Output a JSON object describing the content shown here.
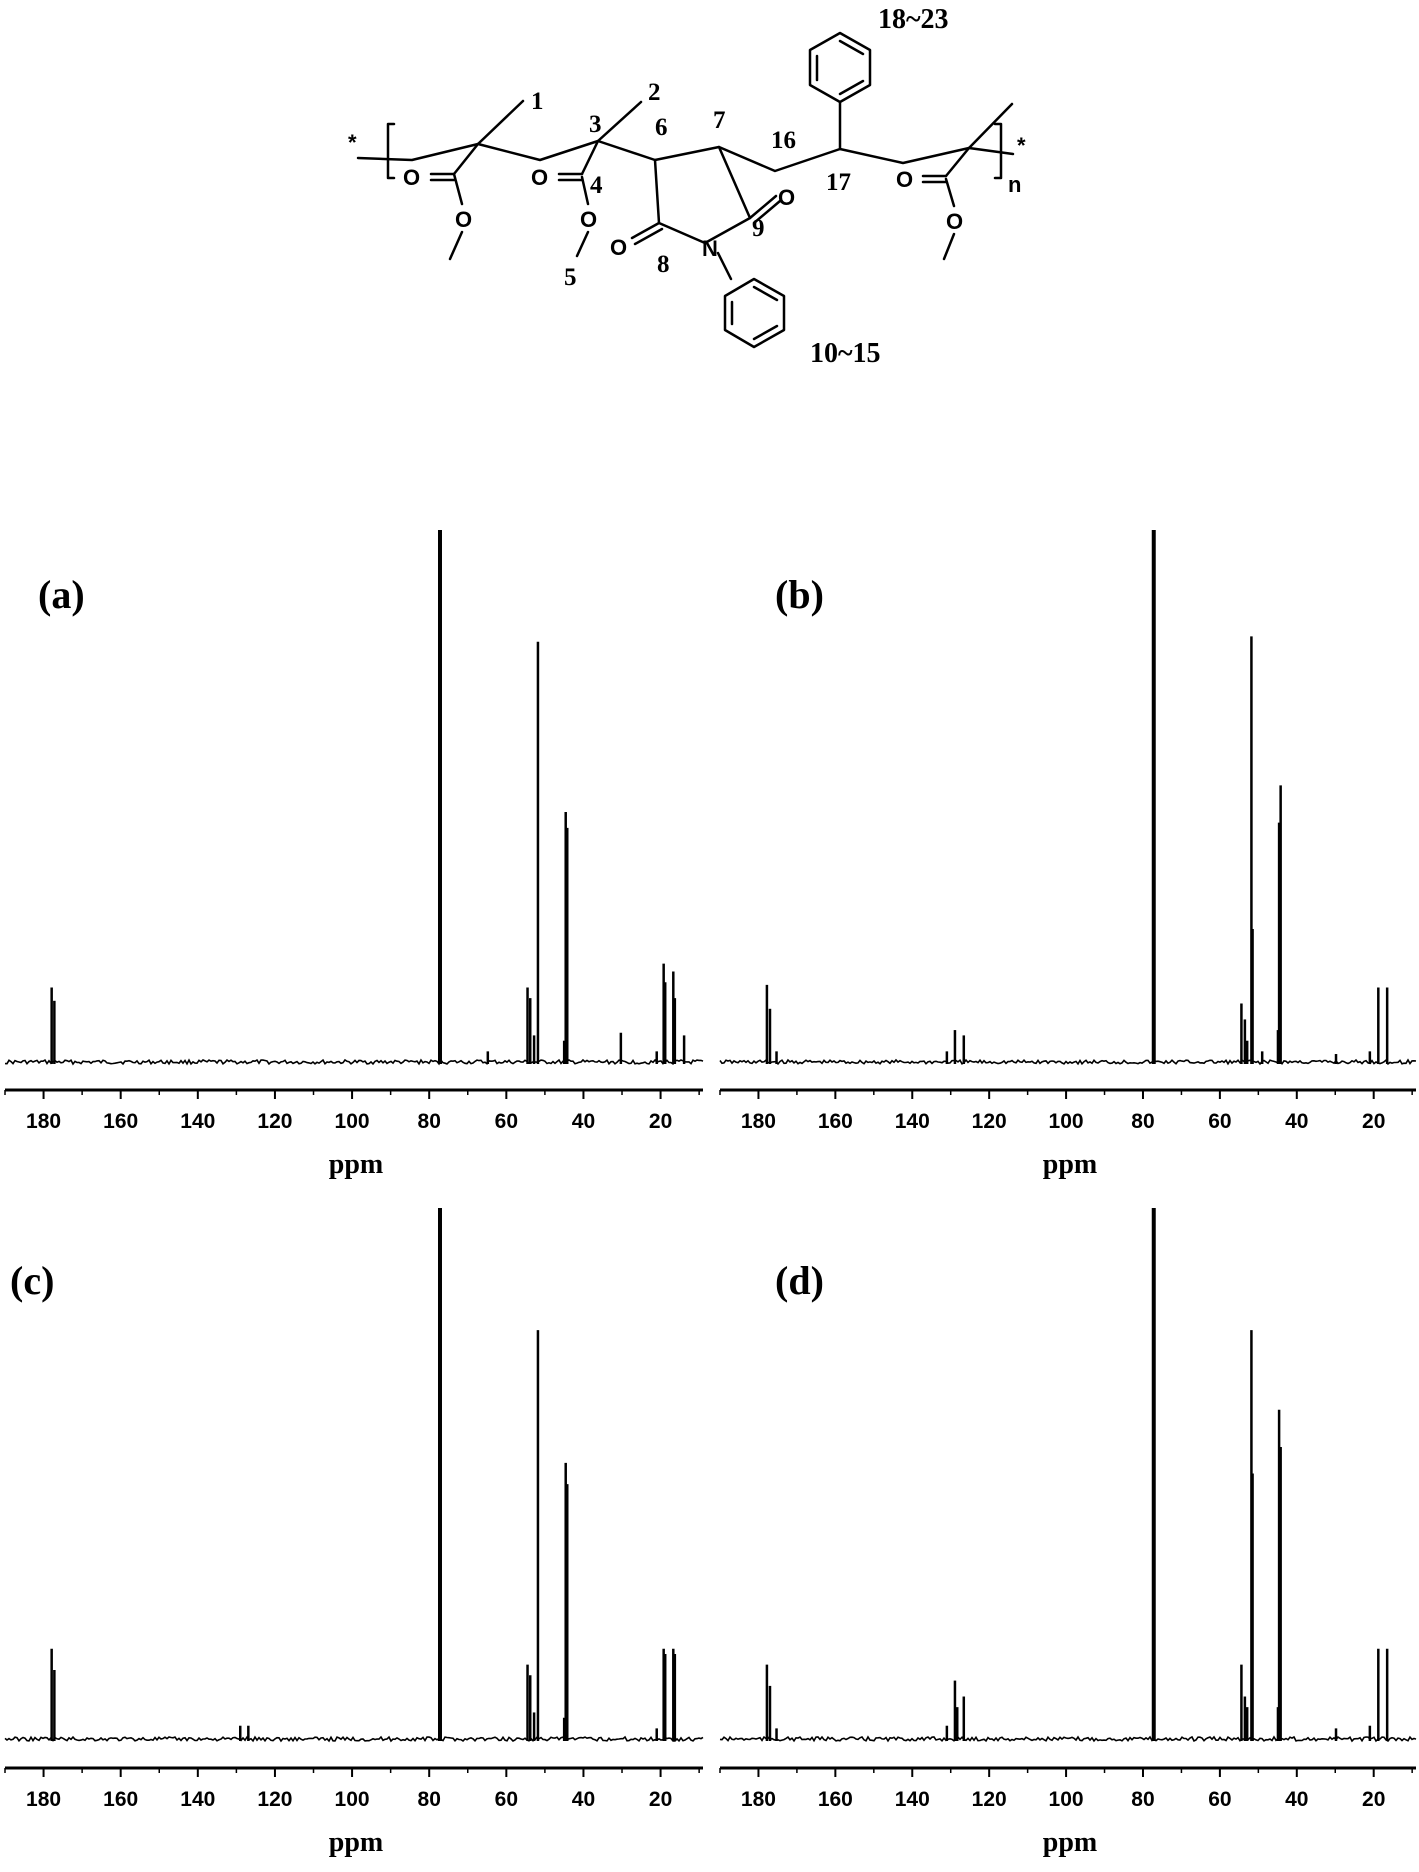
{
  "structure": {
    "atom_O": "O",
    "atom_N": "N",
    "repeat_n": "n",
    "end_star": "*",
    "labels": {
      "c1": "1",
      "c2": "2",
      "c3": "3",
      "c4": "4",
      "c5": "5",
      "c6": "6",
      "c7": "7",
      "c8": "8",
      "c9": "9",
      "c16": "16",
      "c17": "17",
      "r1015": "10~15",
      "r1823": "18~23"
    }
  },
  "chart_data": [
    {
      "type": "line",
      "panel_label": "(a)",
      "xlabel": "ppm",
      "x_reversed": true,
      "xlim": [
        190,
        9
      ],
      "ylim": [
        0,
        1
      ],
      "grid": false,
      "xticks": [
        180,
        160,
        140,
        120,
        100,
        80,
        60,
        40,
        20
      ],
      "peaks": [
        {
          "ppm": 177.9,
          "h": 0.14
        },
        {
          "ppm": 177.2,
          "h": 0.115
        },
        {
          "ppm": 77.2,
          "h": 1.0
        },
        {
          "ppm": 64.8,
          "h": 0.02
        },
        {
          "ppm": 54.5,
          "h": 0.14
        },
        {
          "ppm": 53.8,
          "h": 0.12
        },
        {
          "ppm": 52.8,
          "h": 0.05
        },
        {
          "ppm": 51.8,
          "h": 0.79
        },
        {
          "ppm": 45.0,
          "h": 0.04
        },
        {
          "ppm": 44.6,
          "h": 0.47
        },
        {
          "ppm": 44.2,
          "h": 0.44
        },
        {
          "ppm": 30.3,
          "h": 0.055
        },
        {
          "ppm": 21.0,
          "h": 0.02
        },
        {
          "ppm": 19.2,
          "h": 0.185
        },
        {
          "ppm": 18.8,
          "h": 0.15
        },
        {
          "ppm": 16.7,
          "h": 0.17
        },
        {
          "ppm": 16.3,
          "h": 0.12
        },
        {
          "ppm": 13.9,
          "h": 0.05
        }
      ]
    },
    {
      "type": "line",
      "panel_label": "(b)",
      "xlabel": "ppm",
      "x_reversed": true,
      "xlim": [
        190,
        9
      ],
      "ylim": [
        0,
        1
      ],
      "grid": false,
      "xticks": [
        180,
        160,
        140,
        120,
        100,
        80,
        60,
        40,
        20
      ],
      "peaks": [
        {
          "ppm": 177.8,
          "h": 0.145
        },
        {
          "ppm": 177.0,
          "h": 0.1
        },
        {
          "ppm": 175.3,
          "h": 0.02
        },
        {
          "ppm": 131.0,
          "h": 0.02
        },
        {
          "ppm": 128.9,
          "h": 0.06
        },
        {
          "ppm": 126.6,
          "h": 0.05
        },
        {
          "ppm": 77.2,
          "h": 1.0
        },
        {
          "ppm": 54.4,
          "h": 0.11
        },
        {
          "ppm": 53.5,
          "h": 0.08
        },
        {
          "ppm": 52.9,
          "h": 0.04
        },
        {
          "ppm": 51.8,
          "h": 0.8
        },
        {
          "ppm": 51.5,
          "h": 0.25
        },
        {
          "ppm": 49.0,
          "h": 0.02
        },
        {
          "ppm": 44.9,
          "h": 0.06
        },
        {
          "ppm": 44.6,
          "h": 0.45
        },
        {
          "ppm": 44.2,
          "h": 0.52
        },
        {
          "ppm": 29.8,
          "h": 0.015
        },
        {
          "ppm": 21.0,
          "h": 0.02
        },
        {
          "ppm": 18.8,
          "h": 0.14
        },
        {
          "ppm": 16.5,
          "h": 0.14
        }
      ]
    },
    {
      "type": "line",
      "panel_label": "(c)",
      "xlabel": "ppm",
      "x_reversed": true,
      "xlim": [
        190,
        9
      ],
      "ylim": [
        0,
        1
      ],
      "grid": false,
      "xticks": [
        180,
        160,
        140,
        120,
        100,
        80,
        60,
        40,
        20
      ],
      "peaks": [
        {
          "ppm": 177.9,
          "h": 0.17
        },
        {
          "ppm": 177.2,
          "h": 0.13
        },
        {
          "ppm": 129.0,
          "h": 0.025
        },
        {
          "ppm": 126.9,
          "h": 0.025
        },
        {
          "ppm": 77.2,
          "h": 1.0
        },
        {
          "ppm": 54.5,
          "h": 0.14
        },
        {
          "ppm": 53.8,
          "h": 0.12
        },
        {
          "ppm": 52.8,
          "h": 0.05
        },
        {
          "ppm": 51.8,
          "h": 0.77
        },
        {
          "ppm": 45.0,
          "h": 0.04
        },
        {
          "ppm": 44.6,
          "h": 0.52
        },
        {
          "ppm": 44.2,
          "h": 0.48
        },
        {
          "ppm": 21.0,
          "h": 0.02
        },
        {
          "ppm": 19.2,
          "h": 0.17
        },
        {
          "ppm": 18.8,
          "h": 0.16
        },
        {
          "ppm": 16.7,
          "h": 0.17
        },
        {
          "ppm": 16.3,
          "h": 0.16
        }
      ]
    },
    {
      "type": "line",
      "panel_label": "(d)",
      "xlabel": "ppm",
      "x_reversed": true,
      "xlim": [
        190,
        9
      ],
      "ylim": [
        0,
        1
      ],
      "grid": false,
      "xticks": [
        180,
        160,
        140,
        120,
        100,
        80,
        60,
        40,
        20
      ],
      "peaks": [
        {
          "ppm": 177.8,
          "h": 0.14
        },
        {
          "ppm": 177.0,
          "h": 0.1
        },
        {
          "ppm": 175.3,
          "h": 0.02
        },
        {
          "ppm": 131.0,
          "h": 0.025
        },
        {
          "ppm": 128.9,
          "h": 0.11
        },
        {
          "ppm": 128.3,
          "h": 0.06
        },
        {
          "ppm": 126.6,
          "h": 0.08
        },
        {
          "ppm": 77.2,
          "h": 1.0
        },
        {
          "ppm": 54.4,
          "h": 0.14
        },
        {
          "ppm": 53.5,
          "h": 0.08
        },
        {
          "ppm": 52.9,
          "h": 0.06
        },
        {
          "ppm": 51.8,
          "h": 0.77
        },
        {
          "ppm": 51.5,
          "h": 0.5
        },
        {
          "ppm": 44.9,
          "h": 0.06
        },
        {
          "ppm": 44.6,
          "h": 0.62
        },
        {
          "ppm": 44.2,
          "h": 0.55
        },
        {
          "ppm": 29.8,
          "h": 0.02
        },
        {
          "ppm": 21.0,
          "h": 0.025
        },
        {
          "ppm": 18.8,
          "h": 0.17
        },
        {
          "ppm": 16.5,
          "h": 0.17
        }
      ]
    }
  ]
}
